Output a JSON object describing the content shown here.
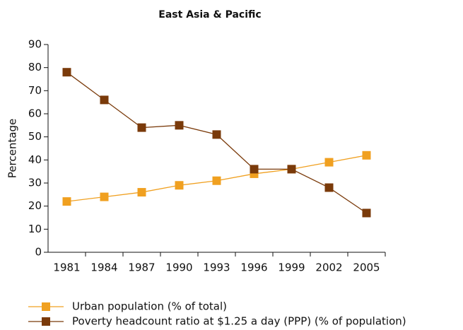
{
  "chart_data": {
    "type": "line",
    "title": "East Asia & Pacific",
    "y_label": "Percentage",
    "categories": [
      "1981",
      "1984",
      "1987",
      "1990",
      "1993",
      "1996",
      "1999",
      "2002",
      "2005"
    ],
    "series": [
      {
        "name": "Urban population (% of total)",
        "color": "#f0a020",
        "values": [
          22,
          24,
          26,
          29,
          31,
          34,
          36,
          39,
          42
        ]
      },
      {
        "name": "Poverty headcount ratio at $1.25 a day (PPP) (% of population)",
        "color": "#7a3a0a",
        "values": [
          78,
          66,
          54,
          55,
          51,
          36,
          36,
          28,
          17
        ]
      }
    ],
    "ylim": [
      0,
      90
    ],
    "yticks": [
      0,
      10,
      20,
      30,
      40,
      50,
      60,
      70,
      80,
      90
    ],
    "grid": false
  }
}
